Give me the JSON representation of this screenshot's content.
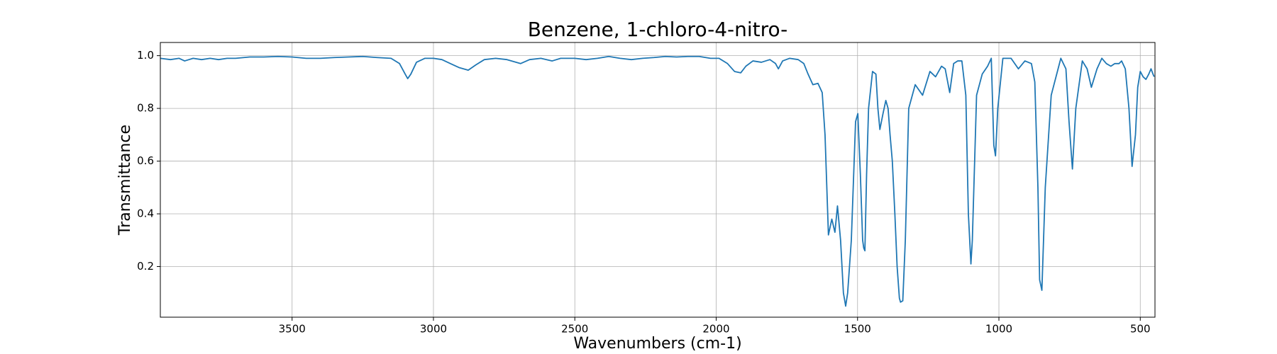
{
  "chart_data": {
    "type": "line",
    "title": "Benzene, 1-chloro-4-nitro-",
    "x_label": "Wavenumbers (cm-1)",
    "y_label": "Transmittance",
    "xlim": [
      3966,
      448
    ],
    "ylim": [
      0.008,
      1.05
    ],
    "xticks": [
      3500,
      3000,
      2500,
      2000,
      1500,
      1000,
      500
    ],
    "yticks": [
      0.2,
      0.4,
      0.6,
      0.8,
      {
        "value": 1,
        "label": "1.0"
      }
    ],
    "grid": true,
    "series": [
      {
        "name": "Benzene, 1-chloro-4-nitro-",
        "color": "#1f77b4",
        "x": [
          3966,
          3930,
          3900,
          3880,
          3850,
          3820,
          3790,
          3760,
          3730,
          3700,
          3650,
          3600,
          3550,
          3500,
          3450,
          3400,
          3350,
          3300,
          3250,
          3200,
          3150,
          3120,
          3100,
          3091,
          3080,
          3060,
          3030,
          3000,
          2970,
          2940,
          2910,
          2877,
          2850,
          2820,
          2780,
          2740,
          2692,
          2660,
          2620,
          2580,
          2550,
          2500,
          2460,
          2420,
          2380,
          2340,
          2300,
          2260,
          2220,
          2180,
          2140,
          2100,
          2060,
          2020,
          1990,
          1960,
          1935,
          1913,
          1895,
          1870,
          1840,
          1810,
          1790,
          1780,
          1765,
          1740,
          1710,
          1690,
          1675,
          1658,
          1640,
          1625,
          1615,
          1603,
          1591,
          1580,
          1571,
          1560,
          1550,
          1542,
          1535,
          1522,
          1507,
          1499,
          1490,
          1482,
          1478,
          1474,
          1468,
          1461,
          1447,
          1435,
          1428,
          1421,
          1410,
          1400,
          1392,
          1385,
          1377,
          1368,
          1360,
          1352,
          1348,
          1340,
          1331,
          1319,
          1296,
          1270,
          1244,
          1224,
          1203,
          1190,
          1174,
          1160,
          1146,
          1131,
          1117,
          1108,
          1099,
          1094,
          1079,
          1059,
          1040,
          1027,
          1018,
          1012,
          1004,
          986,
          970,
          957,
          931,
          908,
          885,
          873,
          862,
          856,
          848,
          836,
          815,
          781,
          763,
          752,
          740,
          728,
          705,
          688,
          673,
          653,
          636,
          620,
          604,
          590,
          575,
          566,
          553,
          540,
          529,
          517,
          509,
          500,
          490,
          480,
          470,
          462,
          455,
          451
        ],
        "values": [
          0.99,
          0.985,
          0.99,
          0.98,
          0.99,
          0.985,
          0.99,
          0.985,
          0.99,
          0.99,
          0.995,
          0.995,
          0.997,
          0.995,
          0.99,
          0.99,
          0.993,
          0.995,
          0.997,
          0.993,
          0.99,
          0.97,
          0.93,
          0.913,
          0.93,
          0.975,
          0.99,
          0.99,
          0.985,
          0.97,
          0.955,
          0.945,
          0.965,
          0.985,
          0.99,
          0.985,
          0.97,
          0.985,
          0.99,
          0.98,
          0.99,
          0.99,
          0.985,
          0.99,
          0.997,
          0.99,
          0.985,
          0.99,
          0.993,
          0.997,
          0.995,
          0.997,
          0.997,
          0.99,
          0.99,
          0.97,
          0.94,
          0.935,
          0.96,
          0.98,
          0.975,
          0.985,
          0.97,
          0.95,
          0.98,
          0.99,
          0.985,
          0.97,
          0.93,
          0.89,
          0.895,
          0.86,
          0.7,
          0.32,
          0.38,
          0.33,
          0.43,
          0.3,
          0.1,
          0.05,
          0.1,
          0.3,
          0.75,
          0.78,
          0.55,
          0.3,
          0.27,
          0.26,
          0.55,
          0.8,
          0.94,
          0.93,
          0.8,
          0.72,
          0.78,
          0.83,
          0.8,
          0.7,
          0.6,
          0.4,
          0.2,
          0.08,
          0.065,
          0.07,
          0.3,
          0.8,
          0.89,
          0.85,
          0.94,
          0.92,
          0.96,
          0.95,
          0.86,
          0.97,
          0.98,
          0.98,
          0.85,
          0.4,
          0.21,
          0.3,
          0.85,
          0.93,
          0.96,
          0.99,
          0.66,
          0.62,
          0.8,
          0.99,
          0.99,
          0.99,
          0.95,
          0.98,
          0.97,
          0.9,
          0.5,
          0.15,
          0.11,
          0.5,
          0.85,
          0.99,
          0.95,
          0.75,
          0.57,
          0.8,
          0.98,
          0.95,
          0.88,
          0.95,
          0.99,
          0.97,
          0.96,
          0.97,
          0.97,
          0.98,
          0.95,
          0.8,
          0.58,
          0.7,
          0.88,
          0.94,
          0.92,
          0.91,
          0.93,
          0.95,
          0.93,
          0.92
        ]
      }
    ]
  }
}
